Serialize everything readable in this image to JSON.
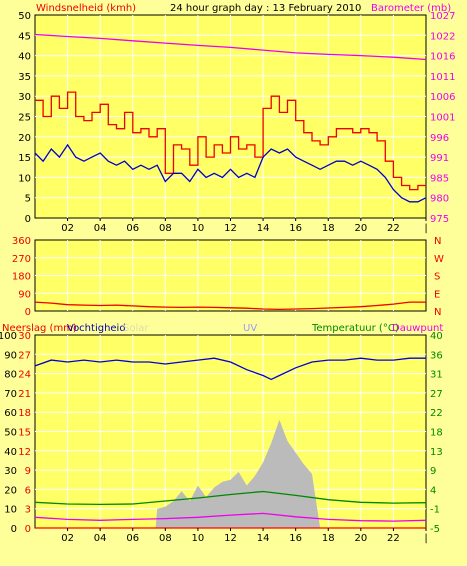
{
  "header": {
    "title": "24 hour graph day : 13 February 2010",
    "left_label": "Windsnelheid (kmh)",
    "right_label": "Barometer (mb)"
  },
  "colors": {
    "background": "#ffff99",
    "plot_bg": "#ffff66",
    "grid": "#ffffff",
    "wind_gust": "#ee0000",
    "wind_avg": "#0000cc",
    "barometer": "#ee00ee",
    "direction": "#ee0000",
    "humidity": "#0000dd",
    "solar": "#bbbbbb",
    "temperature": "#008800",
    "dewpoint": "#ee00ee",
    "rain": "#ff0000",
    "uv_label": "#9999ff",
    "solar_label": "#ddddaa",
    "dir_label": "#ee0000",
    "wind_axis": "#ee0000",
    "baro_axis": "#ee00ee",
    "hum_axis": "#0000aa",
    "temp_axis": "#008800"
  },
  "chart_data": [
    {
      "type": "line",
      "name": "wind-barometer",
      "x_ticks": [
        "02",
        "04",
        "06",
        "08",
        "10",
        "12",
        "14",
        "16",
        "18",
        "20",
        "22",
        "|"
      ],
      "y_left_ticks": [
        "0",
        "5",
        "10",
        "15",
        "20",
        "25",
        "30",
        "35",
        "40",
        "45",
        "50"
      ],
      "y_right_ticks": [
        "975",
        "980",
        "985",
        "991",
        "996",
        "1001",
        "1006",
        "1011",
        "1016",
        "1022",
        "1027"
      ],
      "ylim_left": [
        0,
        50
      ],
      "ylim_right": [
        975,
        1027
      ],
      "series": [
        {
          "role": "wind_gust",
          "x": [
            0,
            0.5,
            1,
            1.5,
            2,
            2.5,
            3,
            3.5,
            4,
            4.5,
            5,
            5.5,
            6,
            6.5,
            7,
            7.5,
            8,
            8.5,
            9,
            9.5,
            10,
            10.5,
            11,
            11.5,
            12,
            12.5,
            13,
            13.5,
            14,
            14.5,
            15,
            15.5,
            16,
            16.5,
            17,
            17.5,
            18,
            18.5,
            19,
            19.5,
            20,
            20.5,
            21,
            21.5,
            22,
            22.5,
            23,
            23.5,
            24
          ],
          "values": [
            29,
            25,
            30,
            27,
            31,
            25,
            24,
            26,
            28,
            23,
            22,
            26,
            21,
            22,
            20,
            22,
            11,
            18,
            17,
            13,
            20,
            15,
            18,
            16,
            20,
            17,
            18,
            15,
            27,
            30,
            26,
            29,
            24,
            21,
            19,
            18,
            20,
            22,
            22,
            21,
            22,
            21,
            19,
            14,
            10,
            8,
            7,
            8,
            8
          ]
        },
        {
          "role": "wind_avg",
          "x": [
            0,
            0.5,
            1,
            1.5,
            2,
            2.5,
            3,
            3.5,
            4,
            4.5,
            5,
            5.5,
            6,
            6.5,
            7,
            7.5,
            8,
            8.5,
            9,
            9.5,
            10,
            10.5,
            11,
            11.5,
            12,
            12.5,
            13,
            13.5,
            14,
            14.5,
            15,
            15.5,
            16,
            16.5,
            17,
            17.5,
            18,
            18.5,
            19,
            19.5,
            20,
            20.5,
            21,
            21.5,
            22,
            22.5,
            23,
            23.5,
            24
          ],
          "values": [
            16,
            14,
            17,
            15,
            18,
            15,
            14,
            15,
            16,
            14,
            13,
            14,
            12,
            13,
            12,
            13,
            9,
            11,
            11,
            9,
            12,
            10,
            11,
            10,
            12,
            10,
            11,
            10,
            15,
            17,
            16,
            17,
            15,
            14,
            13,
            12,
            13,
            14,
            14,
            13,
            14,
            13,
            12,
            10,
            7,
            5,
            4,
            4,
            5
          ]
        },
        {
          "role": "barometer",
          "axis": "right",
          "x": [
            0,
            2,
            4,
            6,
            8,
            10,
            12,
            14,
            16,
            18,
            20,
            22,
            24
          ],
          "values": [
            1022.0,
            1021.5,
            1021.0,
            1020.4,
            1019.8,
            1019.2,
            1018.7,
            1018.0,
            1017.3,
            1016.9,
            1016.6,
            1016.2,
            1015.6
          ]
        }
      ]
    },
    {
      "type": "line",
      "name": "wind-direction",
      "x_ticks": [],
      "y_left_ticks": [
        "0",
        "90",
        "180",
        "270",
        "360"
      ],
      "y_right_ticks": [
        "N",
        "E",
        "S",
        "W",
        "N"
      ],
      "ylim": [
        0,
        360
      ],
      "series": [
        {
          "role": "direction",
          "x": [
            0,
            1,
            2,
            3,
            4,
            5,
            6,
            7,
            8,
            9,
            10,
            11,
            12,
            13,
            14,
            15,
            16,
            17,
            18,
            19,
            20,
            21,
            22,
            23,
            24
          ],
          "values": [
            45,
            40,
            32,
            30,
            28,
            30,
            26,
            22,
            20,
            18,
            20,
            18,
            16,
            14,
            10,
            8,
            10,
            12,
            15,
            18,
            22,
            28,
            35,
            45,
            45
          ]
        }
      ]
    },
    {
      "type": "line",
      "name": "rain-humidity-solar-temperature",
      "labels": [
        "Neerslag (mm)",
        "Vochtigheid",
        "Solar",
        "UV",
        "Temperatuur (°C)",
        "Dauwpunt"
      ],
      "x_ticks": [
        "02",
        "04",
        "06",
        "08",
        "10",
        "12",
        "14",
        "16",
        "18",
        "20",
        "22",
        "|"
      ],
      "y_left_ticks": [
        "0",
        "10",
        "20",
        "30",
        "40",
        "50",
        "60",
        "70",
        "80",
        "90",
        "100"
      ],
      "y_left2_ticks": [
        "0",
        "3",
        "6",
        "9",
        "12",
        "15",
        "18",
        "21",
        "24",
        "27",
        "30"
      ],
      "y_right_ticks": [
        "-5",
        "-1",
        "4",
        "9",
        "13",
        "18",
        "22",
        "27",
        "31",
        "36",
        "40"
      ],
      "ylim_left": [
        0,
        100
      ],
      "ylim_right": [
        -5,
        40
      ],
      "series": [
        {
          "role": "humidity",
          "x": [
            0,
            1,
            2,
            3,
            4,
            5,
            6,
            7,
            8,
            9,
            10,
            11,
            12,
            13,
            14,
            14.5,
            15,
            16,
            17,
            18,
            19,
            20,
            21,
            22,
            23,
            24
          ],
          "values": [
            84,
            87,
            86,
            87,
            86,
            87,
            86,
            86,
            85,
            86,
            87,
            88,
            86,
            82,
            79,
            77,
            79,
            83,
            86,
            87,
            87,
            88,
            87,
            87,
            88,
            88
          ]
        },
        {
          "role": "solar",
          "x": [
            7.4,
            7.5,
            8,
            8.5,
            9,
            9.5,
            10,
            10.5,
            11,
            11.5,
            12,
            12.5,
            13,
            13.5,
            14,
            14.5,
            15,
            15.5,
            16,
            16.5,
            17,
            17.5
          ],
          "values": [
            0,
            10,
            11,
            14,
            19,
            14,
            22,
            16,
            21,
            24,
            25,
            29,
            22,
            27,
            34,
            44,
            56,
            45,
            39,
            33,
            28,
            0
          ]
        },
        {
          "role": "temperature",
          "x": [
            0,
            2,
            4,
            6,
            8,
            10,
            12,
            14,
            16,
            18,
            20,
            22,
            24
          ],
          "values": [
            1,
            0.6,
            0.5,
            0.6,
            1.3,
            2.0,
            2.8,
            3.5,
            2.6,
            1.6,
            1.0,
            0.8,
            0.9
          ]
        },
        {
          "role": "dewpoint",
          "x": [
            0,
            2,
            4,
            6,
            8,
            10,
            12,
            14,
            16,
            18,
            20,
            22,
            24
          ],
          "values": [
            -2.5,
            -3.0,
            -3.2,
            -3.0,
            -2.8,
            -2.5,
            -2.0,
            -1.6,
            -2.4,
            -3.0,
            -3.3,
            -3.4,
            -3.2
          ]
        },
        {
          "role": "rain",
          "x": [
            0,
            24
          ],
          "values": [
            0,
            0
          ]
        }
      ]
    }
  ]
}
